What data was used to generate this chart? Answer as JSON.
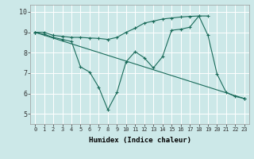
{
  "xlabel": "Humidex (Indice chaleur)",
  "bg_color": "#cce8e8",
  "line_color": "#1a6b5a",
  "grid_color": "#ffffff",
  "xlim": [
    -0.5,
    23.5
  ],
  "ylim": [
    4.5,
    10.35
  ],
  "xticks": [
    0,
    1,
    2,
    3,
    4,
    5,
    6,
    7,
    8,
    9,
    10,
    11,
    12,
    13,
    14,
    15,
    16,
    17,
    18,
    19,
    20,
    21,
    22,
    23
  ],
  "yticks": [
    5,
    6,
    7,
    8,
    9,
    10
  ],
  "line1_x": [
    0,
    1,
    2,
    3,
    4,
    5,
    6,
    7,
    8,
    9,
    10,
    11,
    12,
    13,
    14,
    15,
    16,
    17,
    18,
    19
  ],
  "line1_y": [
    9.0,
    9.0,
    8.85,
    8.8,
    8.75,
    8.75,
    8.72,
    8.7,
    8.65,
    8.75,
    9.0,
    9.2,
    9.45,
    9.55,
    9.65,
    9.7,
    9.75,
    9.78,
    9.8,
    9.8
  ],
  "line2_x": [
    0,
    1,
    2,
    3,
    4,
    5,
    6,
    7,
    8,
    9,
    10,
    11,
    12,
    13,
    14,
    15,
    16,
    17,
    18,
    19,
    20,
    21,
    22,
    23
  ],
  "line2_y": [
    9.0,
    8.9,
    8.75,
    8.65,
    8.55,
    7.3,
    7.05,
    6.3,
    5.2,
    6.05,
    7.55,
    8.05,
    7.75,
    7.25,
    7.8,
    9.1,
    9.15,
    9.25,
    9.8,
    8.85,
    6.95,
    6.05,
    5.85,
    5.75
  ]
}
